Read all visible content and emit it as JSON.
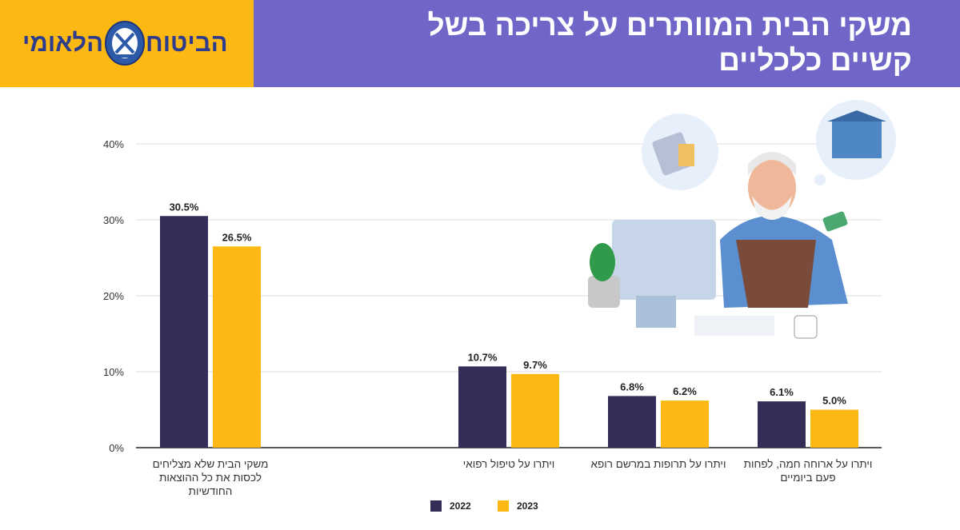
{
  "header": {
    "title": "משקי הבית המוותרים על צריכה בשל קשיים כלכליים",
    "logo_text_right": "הביטוח",
    "logo_text_left": "הלאומי"
  },
  "colors": {
    "s2022": "#352c57",
    "s2023": "#fdb913",
    "header_bg": "#7066c8",
    "logo_bg": "#fdb913"
  },
  "chart_data": {
    "type": "bar",
    "categories": [
      "משקי הבית שלא מצליחים לכסות את כל ההוצאות החודשיות",
      "ויתרו על טיפול רפואי",
      "ויתרו על תרופות במרשם רופא",
      "ויתרו על ארוחה חמה, לפחות פעם ביומיים"
    ],
    "series": [
      {
        "name": "2022",
        "values": [
          30.5,
          10.7,
          6.8,
          6.1
        ]
      },
      {
        "name": "2023",
        "values": [
          26.5,
          9.7,
          6.2,
          5.0
        ]
      }
    ],
    "data_labels": [
      [
        "30.5%",
        "10.7%",
        "6.8%",
        "6.1%"
      ],
      [
        "26.5%",
        "9.7%",
        "6.2%",
        "5.0%"
      ]
    ],
    "yticks": [
      "0%",
      "10%",
      "20%",
      "30%",
      "40%"
    ],
    "ylim": [
      0,
      40
    ],
    "grid": true,
    "legend": "bottom-center"
  }
}
